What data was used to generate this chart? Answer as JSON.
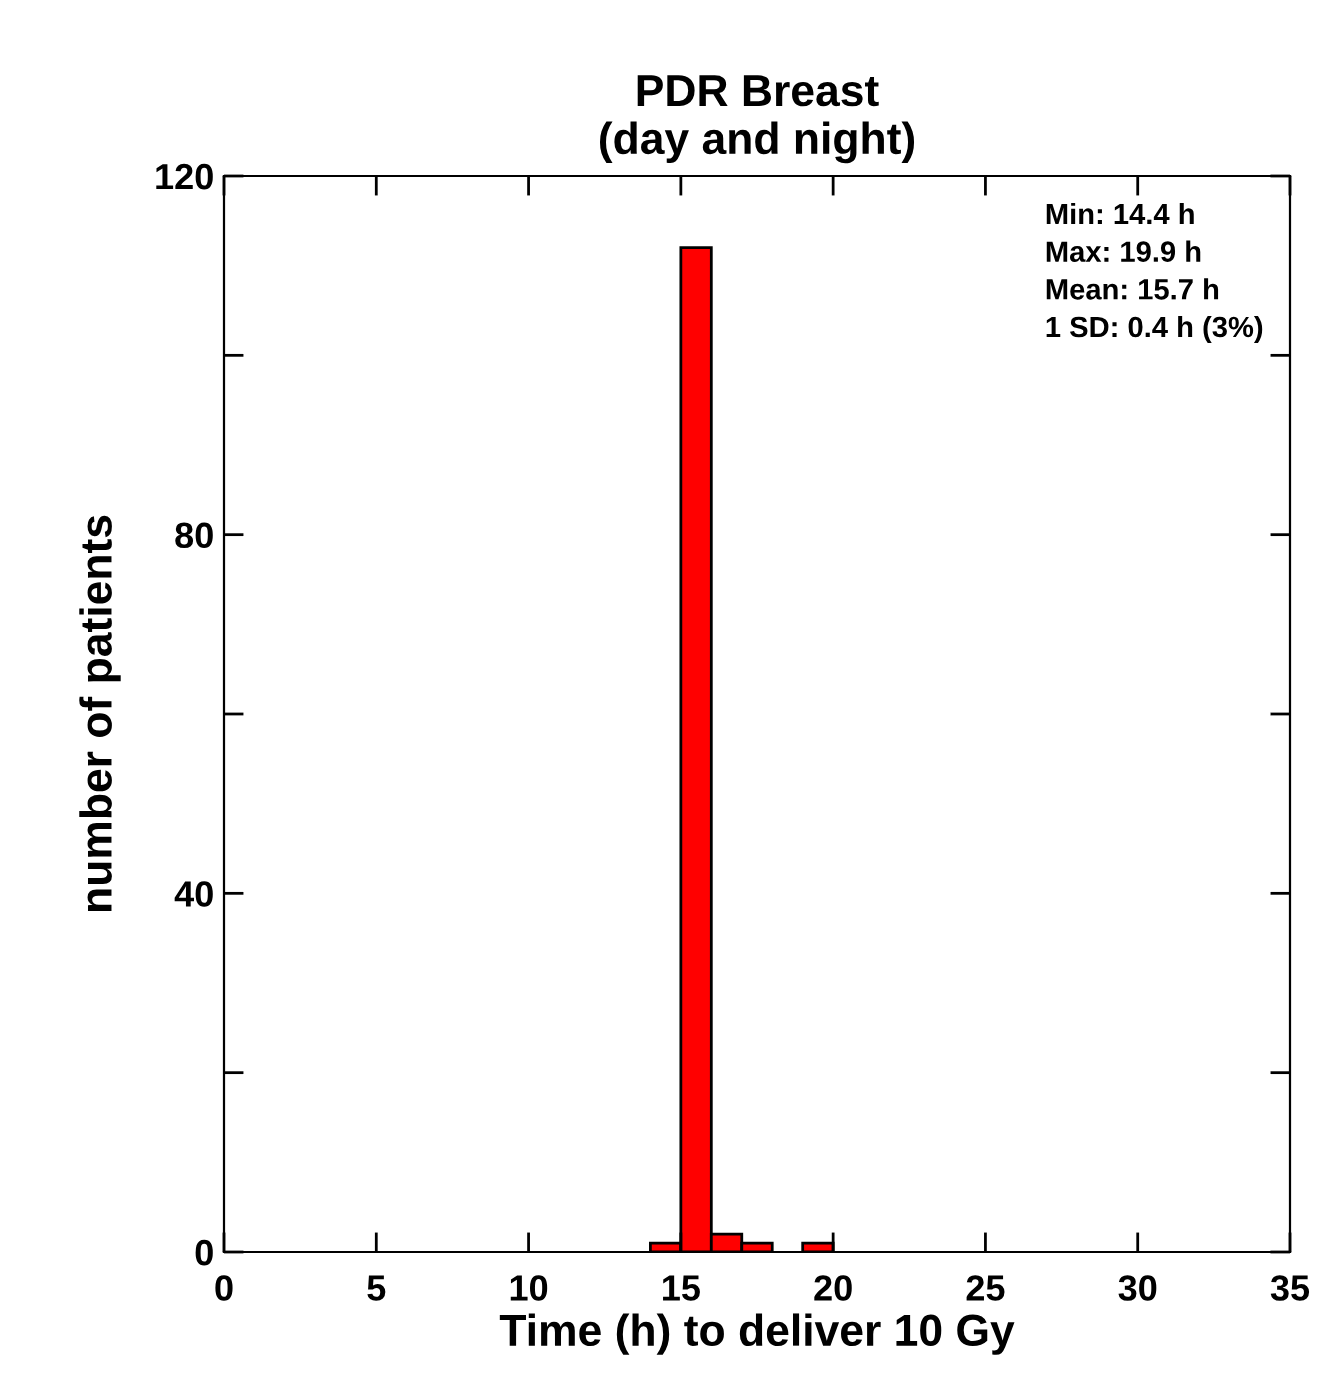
{
  "chart_data": {
    "type": "histogram",
    "title": "PDR Breast\n(day and night)",
    "xlabel": "Time (h) to deliver 10 Gy",
    "ylabel": "number of patients",
    "bins": [
      14,
      15,
      16,
      17,
      18,
      19,
      20
    ],
    "values": [
      1,
      112,
      2,
      1,
      0,
      1
    ],
    "color": "#ff0000",
    "xlim": [
      0,
      35
    ],
    "xticks": [
      0,
      5,
      10,
      15,
      20,
      25,
      30,
      35
    ],
    "ylim": [
      0,
      120
    ],
    "yticks": [
      0,
      {
        "value": 20,
        "label": null
      },
      40,
      {
        "value": 60,
        "label": null
      },
      80,
      {
        "value": 100,
        "label": null
      },
      120
    ],
    "grid": false,
    "annotations": [
      "Min: 14.4 h",
      "Max: 19.9 h",
      "Mean: 15.7 h",
      "1 SD: 0.4 h (3%)"
    ]
  }
}
